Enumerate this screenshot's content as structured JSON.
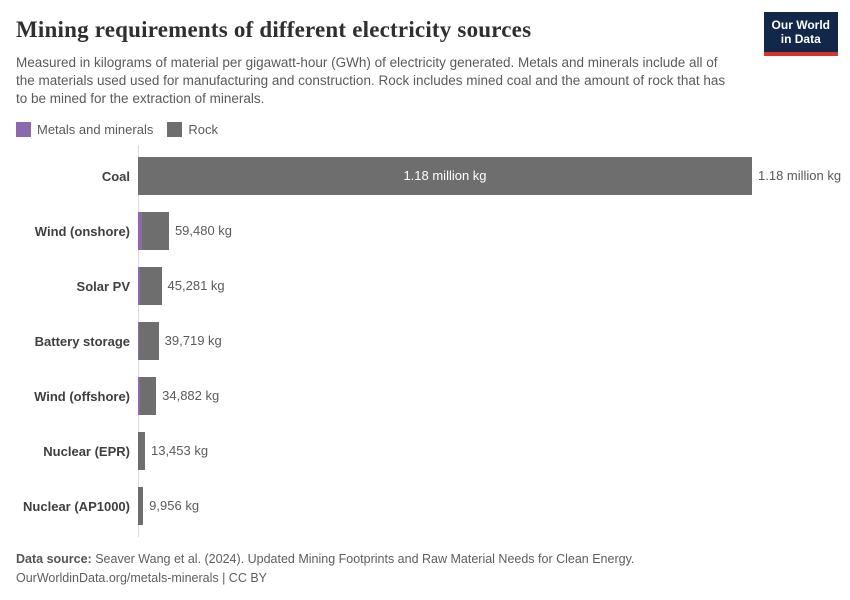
{
  "header": {
    "title": "Mining requirements of different electricity sources",
    "subtitle": "Measured in kilograms of material per gigawatt-hour (GWh) of electricity generated. Metals and minerals include all of the materials used used for manufacturing and construction. Rock includes mined coal and the amount of rock that has to be mined for the extraction of minerals.",
    "logo": {
      "line1": "Our World",
      "line2": "in Data",
      "bg_color": "#12284b",
      "stripe_color": "#d8352a"
    }
  },
  "legend": {
    "items": [
      {
        "label": "Metals and minerals",
        "color": "#8d68ad"
      },
      {
        "label": "Rock",
        "color": "#6e6e6e"
      }
    ]
  },
  "chart_data": {
    "type": "bar",
    "orientation": "horizontal",
    "stacked": true,
    "unit": "kg of material per GWh",
    "categories": [
      "Coal",
      "Wind (onshore)",
      "Solar PV",
      "Battery storage",
      "Wind (offshore)",
      "Nuclear (EPR)",
      "Nuclear (AP1000)"
    ],
    "series": [
      {
        "name": "Metals and minerals",
        "color": "#8d68ad",
        "values": [
          0,
          8600,
          2900,
          2000,
          3900,
          900,
          700
        ]
      },
      {
        "name": "Rock",
        "color": "#6e6e6e",
        "values": [
          1180000,
          50880,
          42381,
          37719,
          30982,
          12553,
          9256
        ]
      }
    ],
    "totals": [
      1180000,
      59480,
      45281,
      39719,
      34882,
      13453,
      9956
    ],
    "total_labels": [
      "1.18 million kg",
      "59,480 kg",
      "45,281 kg",
      "39,719 kg",
      "34,882 kg",
      "13,453 kg",
      "9,956 kg"
    ],
    "inside_label_rows": [
      0
    ],
    "xlim": [
      0,
      1180000
    ],
    "grid": false,
    "legend_position": "top"
  },
  "footer": {
    "source_label": "Data source:",
    "source_text": " Seaver Wang et al. (2024). Updated Mining Footprints and Raw Material Needs for Clean Energy.",
    "license_line": "OurWorldinData.org/metals-minerals | CC BY"
  }
}
